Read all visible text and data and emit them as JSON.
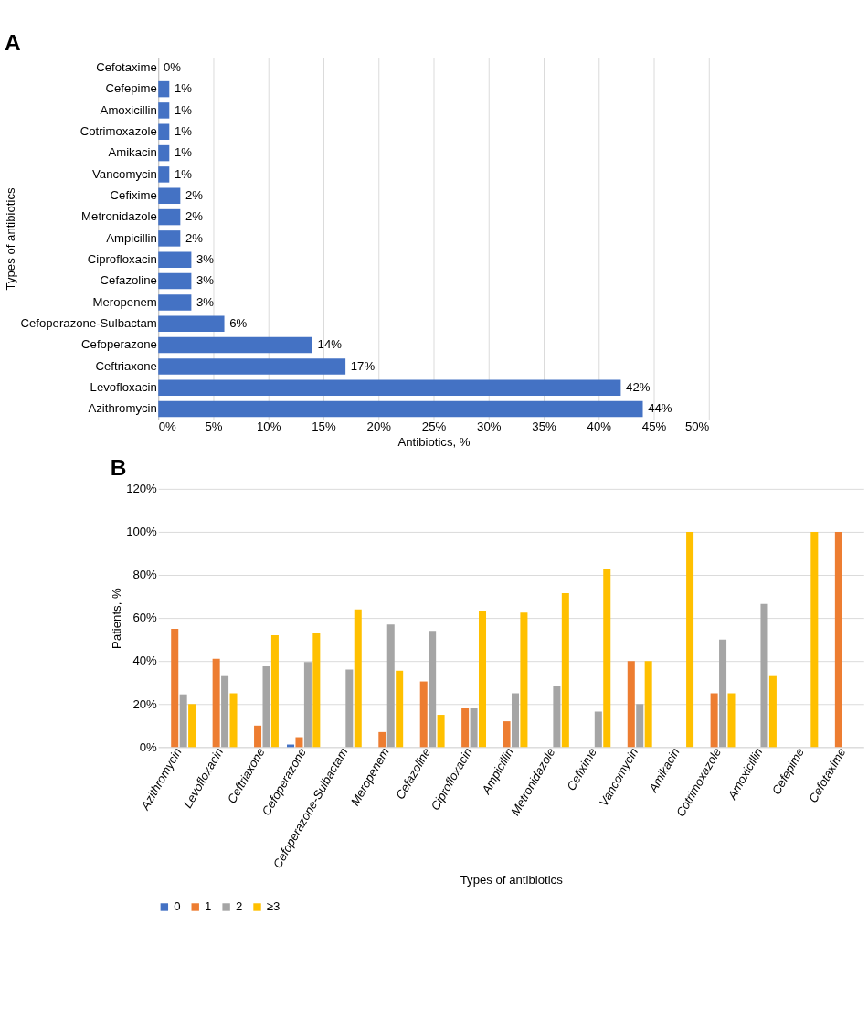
{
  "chart_data": [
    {
      "type": "bar",
      "title": "A",
      "orientation": "horizontal",
      "xlabel": "Antibiotics, %",
      "ylabel": "Types of antibiotics",
      "categories": [
        "Cefotaxime",
        "Cefepime",
        "Amoxicillin",
        "Cotrimoxazole",
        "Amikacin",
        "Vancomycin",
        "Cefixime",
        "Metronidazole",
        "Ampicillin",
        "Ciprofloxacin",
        "Cefazoline",
        "Meropenem",
        "Cefoperazone-Sulbactam",
        "Cefoperazone",
        "Ceftriaxone",
        "Levofloxacin",
        "Azithromycin"
      ],
      "values": [
        0,
        1,
        1,
        1,
        1,
        1,
        2,
        2,
        2,
        3,
        3,
        3,
        6,
        14,
        17,
        42,
        44
      ],
      "value_labels": [
        "0%",
        "1%",
        "1%",
        "1%",
        "1%",
        "1%",
        "2%",
        "2%",
        "2%",
        "3%",
        "3%",
        "3%",
        "6%",
        "14%",
        "17%",
        "42%",
        "44%"
      ],
      "color": "#4472c4",
      "xlim": [
        0,
        50
      ],
      "xticks": [
        {
          "value": 0,
          "label": "0%"
        },
        {
          "value": 5,
          "label": "5%"
        },
        {
          "value": 10,
          "label": "10%"
        },
        {
          "value": 15,
          "label": "15%"
        },
        {
          "value": 20,
          "label": "20%"
        },
        {
          "value": 25,
          "label": "25%"
        },
        {
          "value": 30,
          "label": "30%"
        },
        {
          "value": 35,
          "label": "35%"
        },
        {
          "value": 40,
          "label": "40%"
        },
        {
          "value": 45,
          "label": "45%"
        },
        {
          "value": 50,
          "label": "50%"
        }
      ],
      "grid": "x"
    },
    {
      "type": "bar",
      "title": "B",
      "xlabel": "Types of antibiotics",
      "ylabel": "Patients, %",
      "categories": [
        "Azithromycin",
        "Levofloxacin",
        "Ceftriaxone",
        "Cefoperazone",
        "Cefoperazone-Sulbactam",
        "Meropenem",
        "Cefazoline",
        "Ciprofloxacin",
        "Ampicillin",
        "Metronidazole",
        "Cefixime",
        "Vancomycin",
        "Amikacin",
        "Cotrimoxazole",
        "Amoxicillin",
        "Cefepime",
        "Cefotaxime"
      ],
      "series": [
        {
          "name": "0",
          "color": "#4472c4",
          "values": [
            null,
            null,
            null,
            1.2,
            null,
            null,
            null,
            null,
            null,
            null,
            null,
            null,
            null,
            null,
            null,
            null,
            null
          ]
        },
        {
          "name": "1",
          "color": "#ed7d31",
          "values": [
            55,
            41,
            10,
            4.6,
            null,
            7,
            30.5,
            18,
            12,
            null,
            null,
            40,
            null,
            25,
            null,
            null,
            100
          ]
        },
        {
          "name": "2",
          "color": "#a5a5a5",
          "values": [
            24.5,
            33,
            37.5,
            39.5,
            36,
            57,
            54,
            18,
            25,
            28.5,
            16.5,
            20,
            null,
            50,
            66.5,
            null,
            null
          ]
        },
        {
          "name": "≥3",
          "color": "#ffc000",
          "values": [
            20,
            25,
            52,
            53,
            64,
            35.5,
            15,
            63.5,
            62.5,
            71.5,
            83,
            40,
            100,
            25,
            33,
            100,
            null
          ]
        }
      ],
      "ylim": [
        0,
        120
      ],
      "yticks": [
        {
          "value": 0,
          "label": "0%"
        },
        {
          "value": 20,
          "label": "20%"
        },
        {
          "value": 40,
          "label": "40%"
        },
        {
          "value": 60,
          "label": "60%"
        },
        {
          "value": 80,
          "label": "80%"
        },
        {
          "value": 100,
          "label": "100%"
        },
        {
          "value": 120,
          "label": "120%"
        }
      ],
      "grid": "y",
      "legend": "bottom left"
    }
  ]
}
